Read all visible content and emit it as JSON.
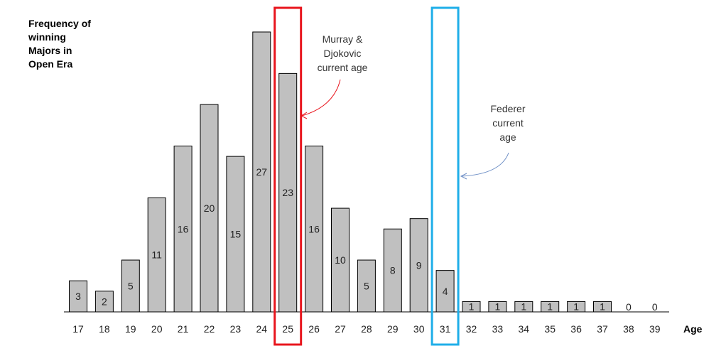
{
  "chart_data": {
    "type": "bar",
    "title": "",
    "ylabel": "Frequency of\nwinning\nMajors in\nOpen Era",
    "xlabel": "Age",
    "categories": [
      "17",
      "18",
      "19",
      "20",
      "21",
      "22",
      "23",
      "24",
      "25",
      "26",
      "27",
      "28",
      "29",
      "30",
      "31",
      "32",
      "33",
      "34",
      "35",
      "36",
      "37",
      "38",
      "39"
    ],
    "values": [
      3,
      2,
      5,
      11,
      16,
      20,
      15,
      27,
      23,
      16,
      10,
      5,
      8,
      9,
      4,
      1,
      1,
      1,
      1,
      1,
      1,
      0,
      0
    ],
    "ylim": [
      0,
      27
    ],
    "grid": false,
    "bar_color": "#c0c0c0",
    "annotations": [
      {
        "text": "Murray &\nDjokovic\ncurrent age",
        "highlight_category": "25",
        "color": "#e8141c"
      },
      {
        "text": "Federer\ncurrent\nage",
        "highlight_category": "31",
        "color": "#1eaee8"
      }
    ]
  }
}
